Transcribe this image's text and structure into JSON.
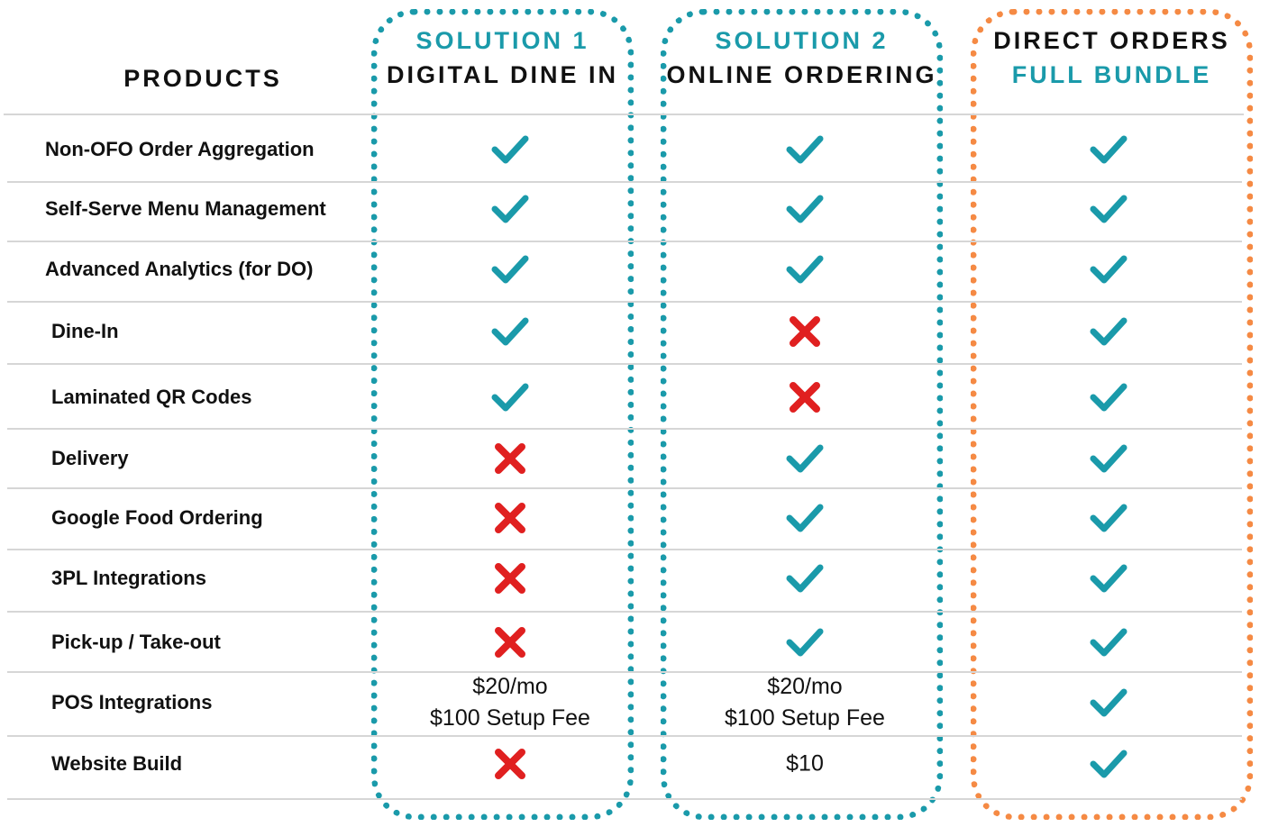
{
  "header": {
    "products": "PRODUCTS",
    "col1": {
      "top": "SOLUTION 1",
      "bottom": "DIGITAL DINE IN"
    },
    "col2": {
      "top": "SOLUTION 2",
      "bottom": "ONLINE ORDERING"
    },
    "col3": {
      "top": "DIRECT ORDERS",
      "bottom": "FULL BUNDLE"
    }
  },
  "colors": {
    "teal": "#1a9aaa",
    "orange": "#f58a44",
    "red": "#e02020"
  },
  "rows": [
    {
      "label": "Non-OFO Order Aggregation",
      "c1": {
        "type": "check"
      },
      "c2": {
        "type": "check"
      },
      "c3": {
        "type": "check"
      }
    },
    {
      "label": "Self-Serve Menu Management",
      "c1": {
        "type": "check"
      },
      "c2": {
        "type": "check"
      },
      "c3": {
        "type": "check"
      }
    },
    {
      "label": "Advanced Analytics (for DO)",
      "c1": {
        "type": "check"
      },
      "c2": {
        "type": "check"
      },
      "c3": {
        "type": "check"
      }
    },
    {
      "label": "Dine-In",
      "c1": {
        "type": "check"
      },
      "c2": {
        "type": "cross"
      },
      "c3": {
        "type": "check"
      }
    },
    {
      "label": "Laminated QR Codes",
      "c1": {
        "type": "check"
      },
      "c2": {
        "type": "cross"
      },
      "c3": {
        "type": "check"
      }
    },
    {
      "label": "Delivery",
      "c1": {
        "type": "cross"
      },
      "c2": {
        "type": "check"
      },
      "c3": {
        "type": "check"
      }
    },
    {
      "label": "Google Food Ordering",
      "c1": {
        "type": "cross"
      },
      "c2": {
        "type": "check"
      },
      "c3": {
        "type": "check"
      }
    },
    {
      "label": "3PL Integrations",
      "c1": {
        "type": "cross"
      },
      "c2": {
        "type": "check"
      },
      "c3": {
        "type": "check"
      }
    },
    {
      "label": "Pick-up / Take-out",
      "c1": {
        "type": "cross"
      },
      "c2": {
        "type": "check"
      },
      "c3": {
        "type": "check"
      }
    },
    {
      "label": "POS Integrations",
      "c1": {
        "type": "text",
        "lines": [
          "$20/mo",
          "$100 Setup Fee"
        ]
      },
      "c2": {
        "type": "text",
        "lines": [
          "$20/mo",
          "$100 Setup Fee"
        ]
      },
      "c3": {
        "type": "check"
      }
    },
    {
      "label": "Website Build",
      "c1": {
        "type": "cross"
      },
      "c2": {
        "type": "text",
        "lines": [
          "$10"
        ]
      },
      "c3": {
        "type": "check"
      }
    }
  ]
}
